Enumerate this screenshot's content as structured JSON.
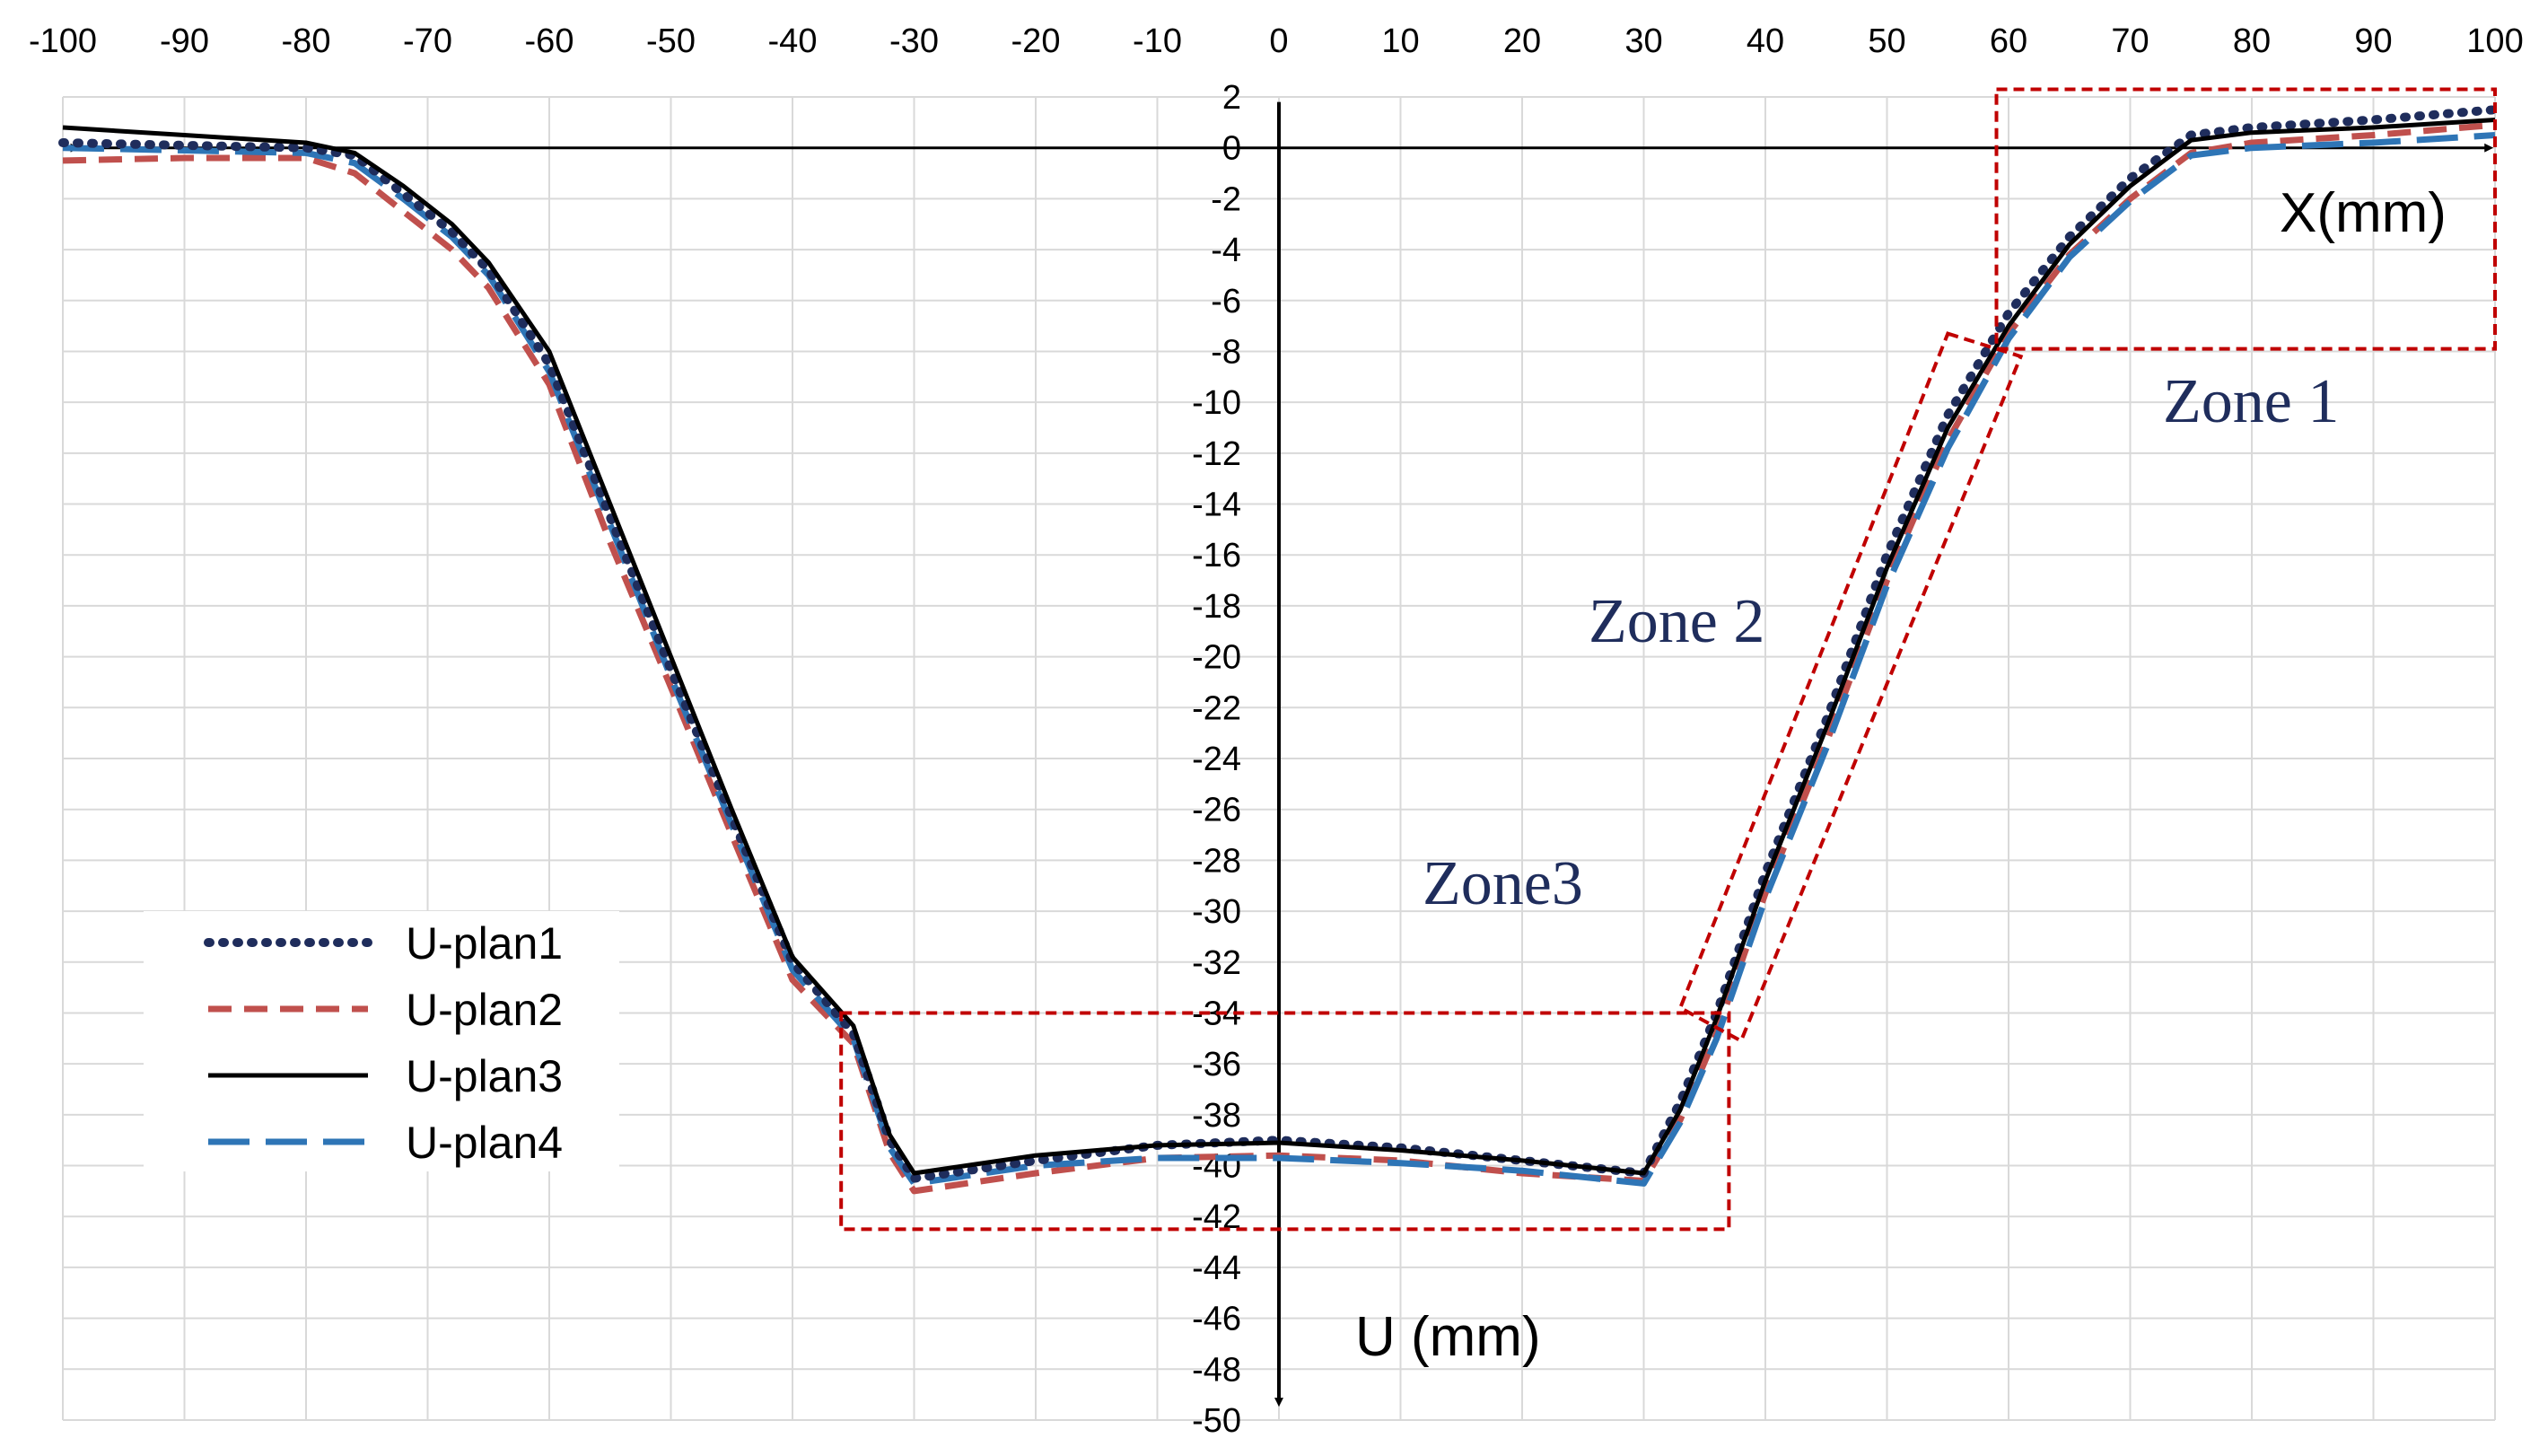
{
  "chart_data": {
    "type": "line",
    "title": "",
    "xlabel": "X(mm)",
    "ylabel": "U (mm)",
    "xlim": [
      -100,
      100
    ],
    "ylim": [
      -50,
      2
    ],
    "x_tick_step": 10,
    "y_tick_step": 2,
    "grid": true,
    "legend_position": "lower-left",
    "series": [
      {
        "name": "U-plan1",
        "style": "dotted",
        "color": "#1f2d5c",
        "points": [
          [
            -100,
            0.2
          ],
          [
            -90,
            0.1
          ],
          [
            -80,
            0
          ],
          [
            -76,
            -0.3
          ],
          [
            -72,
            -1.8
          ],
          [
            -68,
            -3.3
          ],
          [
            -65,
            -4.8
          ],
          [
            -60,
            -8.5
          ],
          [
            -55,
            -14.5
          ],
          [
            -50,
            -20.5
          ],
          [
            -45,
            -26.3
          ],
          [
            -40,
            -32
          ],
          [
            -35,
            -34.8
          ],
          [
            -32,
            -39
          ],
          [
            -30,
            -40.5
          ],
          [
            -20,
            -39.8
          ],
          [
            -10,
            -39.2
          ],
          [
            0,
            -39
          ],
          [
            10,
            -39.3
          ],
          [
            20,
            -39.8
          ],
          [
            30,
            -40.3
          ],
          [
            33,
            -37.5
          ],
          [
            36,
            -34
          ],
          [
            40,
            -28.5
          ],
          [
            45,
            -22.5
          ],
          [
            50,
            -16
          ],
          [
            55,
            -10.5
          ],
          [
            60,
            -6.5
          ],
          [
            65,
            -3.5
          ],
          [
            70,
            -1.2
          ],
          [
            75,
            0.5
          ],
          [
            80,
            0.8
          ],
          [
            90,
            1.1
          ],
          [
            100,
            1.5
          ]
        ]
      },
      {
        "name": "U-plan2",
        "style": "dashed",
        "color": "#c0504d",
        "points": [
          [
            -100,
            -0.5
          ],
          [
            -90,
            -0.4
          ],
          [
            -80,
            -0.4
          ],
          [
            -76,
            -1
          ],
          [
            -72,
            -2.5
          ],
          [
            -68,
            -4
          ],
          [
            -65,
            -5.5
          ],
          [
            -60,
            -9.3
          ],
          [
            -55,
            -15.5
          ],
          [
            -50,
            -21.2
          ],
          [
            -45,
            -27
          ],
          [
            -40,
            -32.7
          ],
          [
            -35,
            -35.2
          ],
          [
            -32,
            -39.5
          ],
          [
            -30,
            -41
          ],
          [
            -20,
            -40.3
          ],
          [
            -10,
            -39.7
          ],
          [
            0,
            -39.6
          ],
          [
            10,
            -39.8
          ],
          [
            20,
            -40.3
          ],
          [
            30,
            -40.6
          ],
          [
            33,
            -38.2
          ],
          [
            36,
            -34.8
          ],
          [
            40,
            -29.3
          ],
          [
            45,
            -23.4
          ],
          [
            50,
            -17
          ],
          [
            55,
            -11.5
          ],
          [
            60,
            -7.3
          ],
          [
            65,
            -4.2
          ],
          [
            70,
            -2
          ],
          [
            75,
            -0.2
          ],
          [
            80,
            0.2
          ],
          [
            90,
            0.5
          ],
          [
            100,
            0.9
          ]
        ]
      },
      {
        "name": "U-plan3",
        "style": "solid",
        "color": "#000000",
        "points": [
          [
            -100,
            0.8
          ],
          [
            -90,
            0.5
          ],
          [
            -80,
            0.2
          ],
          [
            -76,
            -0.2
          ],
          [
            -72,
            -1.5
          ],
          [
            -68,
            -3
          ],
          [
            -65,
            -4.5
          ],
          [
            -60,
            -8
          ],
          [
            -55,
            -14
          ],
          [
            -50,
            -20
          ],
          [
            -45,
            -26
          ],
          [
            -40,
            -31.8
          ],
          [
            -35,
            -34.5
          ],
          [
            -32,
            -38.8
          ],
          [
            -30,
            -40.3
          ],
          [
            -20,
            -39.6
          ],
          [
            -10,
            -39.2
          ],
          [
            0,
            -39.1
          ],
          [
            10,
            -39.4
          ],
          [
            20,
            -39.8
          ],
          [
            30,
            -40.3
          ],
          [
            33,
            -37.8
          ],
          [
            36,
            -34.2
          ],
          [
            40,
            -28.8
          ],
          [
            45,
            -22.8
          ],
          [
            50,
            -16.5
          ],
          [
            55,
            -11
          ],
          [
            60,
            -7
          ],
          [
            65,
            -3.8
          ],
          [
            70,
            -1.5
          ],
          [
            75,
            0.3
          ],
          [
            80,
            0.6
          ],
          [
            90,
            0.8
          ],
          [
            100,
            1.1
          ]
        ]
      },
      {
        "name": "U-plan4",
        "style": "long-dash",
        "color": "#2e75b6",
        "points": [
          [
            -100,
            0
          ],
          [
            -90,
            -0.1
          ],
          [
            -80,
            -0.2
          ],
          [
            -76,
            -0.6
          ],
          [
            -72,
            -2
          ],
          [
            -68,
            -3.5
          ],
          [
            -65,
            -5
          ],
          [
            -60,
            -8.8
          ],
          [
            -55,
            -14.8
          ],
          [
            -50,
            -20.8
          ],
          [
            -45,
            -26.6
          ],
          [
            -40,
            -32.3
          ],
          [
            -35,
            -35
          ],
          [
            -32,
            -39.3
          ],
          [
            -30,
            -40.7
          ],
          [
            -20,
            -40
          ],
          [
            -10,
            -39.7
          ],
          [
            0,
            -39.7
          ],
          [
            10,
            -39.9
          ],
          [
            20,
            -40.2
          ],
          [
            30,
            -40.7
          ],
          [
            33,
            -38.3
          ],
          [
            36,
            -35
          ],
          [
            40,
            -29.5
          ],
          [
            45,
            -23.6
          ],
          [
            50,
            -17.2
          ],
          [
            55,
            -11.8
          ],
          [
            60,
            -7.5
          ],
          [
            65,
            -4.3
          ],
          [
            70,
            -2.1
          ],
          [
            75,
            -0.3
          ],
          [
            80,
            0
          ],
          [
            90,
            0.2
          ],
          [
            100,
            0.5
          ]
        ]
      }
    ],
    "annotations": [
      {
        "text": "Zone 1",
        "color": "#1f2d5c"
      },
      {
        "text": "Zone 2",
        "color": "#1f2d5c"
      },
      {
        "text": "Zone3",
        "color": "#1f2d5c"
      }
    ],
    "zone_boxes": [
      {
        "name": "zone-1-box",
        "corners": [
          [
            59,
            2.3
          ],
          [
            100,
            2.3
          ],
          [
            100,
            -7.9
          ],
          [
            59,
            -7.9
          ]
        ]
      },
      {
        "name": "zone-2-box",
        "corners": [
          [
            55,
            -7.3
          ],
          [
            61,
            -8.2
          ],
          [
            38,
            -35.1
          ],
          [
            33,
            -33.8
          ]
        ]
      },
      {
        "name": "zone-3-box",
        "corners": [
          [
            -36,
            -34
          ],
          [
            37,
            -34
          ],
          [
            37,
            -42.5
          ],
          [
            -36,
            -42.5
          ]
        ]
      }
    ],
    "zone_box_color": "#c00000"
  }
}
